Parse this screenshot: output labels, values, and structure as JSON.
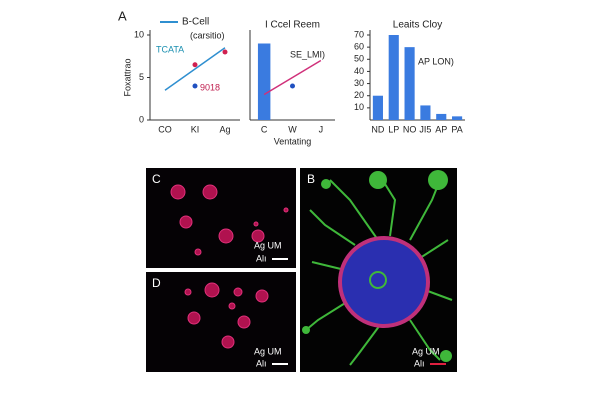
{
  "figure_label": "A",
  "chart_data": [
    {
      "type": "line",
      "y_label": "Foxattrao",
      "categories": [
        "CO",
        "KI",
        "Ag"
      ],
      "ylim": [
        0,
        10
      ],
      "yticks": [
        0,
        5,
        10
      ],
      "annotations": [
        "(carsitio)",
        "TCATA",
        "9018"
      ],
      "series": [
        {
          "name": "B-Cell",
          "style": "line",
          "color": "#2f8fd0",
          "values": [
            3.5,
            6,
            8.5
          ]
        },
        {
          "style": "markers",
          "color": "#d02050",
          "values": [
            null,
            6.5,
            8
          ]
        },
        {
          "style": "markers",
          "color": "#2050c0",
          "values": [
            null,
            4,
            null
          ]
        }
      ]
    },
    {
      "type": "line",
      "title": "I Ccel Reem",
      "x_label": "Ventating",
      "categories": [
        "C",
        "W",
        "J"
      ],
      "ylim": [
        0,
        10
      ],
      "annotations": [
        "SE_LMI)"
      ],
      "series": [
        {
          "style": "bar",
          "color": "#3a7be0",
          "values": [
            9,
            null,
            null
          ]
        },
        {
          "style": "line",
          "color": "#d0307a",
          "values": [
            3,
            5,
            7
          ]
        },
        {
          "style": "markers",
          "color": "#2050c0",
          "values": [
            null,
            4,
            null
          ]
        }
      ]
    },
    {
      "type": "bar",
      "title": "Leaits Cloy",
      "categories": [
        "ND",
        "LP",
        "NO",
        "JI5",
        "AP",
        "PA"
      ],
      "values": [
        20,
        70,
        60,
        12,
        5,
        3
      ],
      "color": "#3a7be0",
      "ylim": [
        0,
        70
      ],
      "yticks": [
        10,
        20,
        30,
        40,
        50,
        60,
        70
      ],
      "annotations": [
        "AP LON)"
      ]
    }
  ],
  "image_panels": [
    {
      "label": "C",
      "scale_text": "Ag UM",
      "scale_unit": "Alı"
    },
    {
      "label": "D",
      "scale_text": "Ag UM",
      "scale_unit": "Alı"
    },
    {
      "label": "B",
      "scale_text": "Ag UM",
      "scale_unit": "Alı"
    }
  ]
}
